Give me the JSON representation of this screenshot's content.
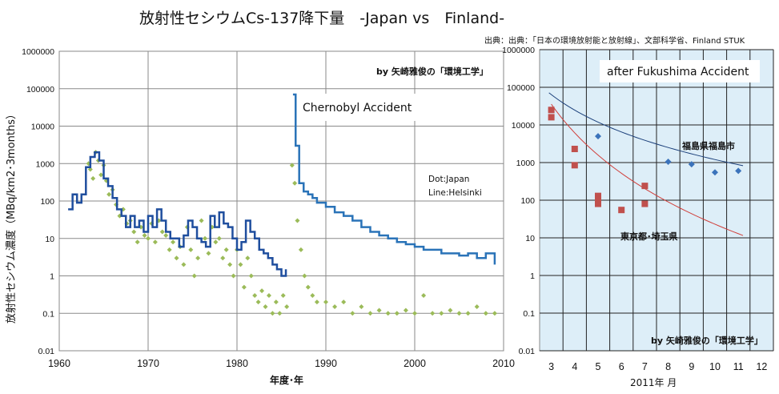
{
  "title": "放射性セシウムCs-137降下量　-Japan vs　Finland-",
  "source": "出典：出典：「日本の環境放射能と放射線」、文部科学省、Finland STUK",
  "chart_data": [
    {
      "type": "scatter",
      "ylabel": "放射性セシウム濃度（MBq/km2･3months）",
      "xlabel": "年度･年",
      "y_scale": "log",
      "ylim": [
        0.01,
        1000000
      ],
      "xlim": [
        1960,
        2010
      ],
      "x_ticks": [
        "1960",
        "1970",
        "1980",
        "1990",
        "2000",
        "2010"
      ],
      "y_ticks": [
        "0.01",
        "0.1",
        "1",
        "10",
        "100",
        "1000",
        "10000",
        "100000",
        "1000000"
      ],
      "grid": true,
      "credit": "by  矢崎雅俊の「環境工学」",
      "legend_note": [
        "Dot:Japan",
        "Line:Helsinki"
      ],
      "annotation": "Chernobyl Accident",
      "colors": {
        "japan_dots": "#9bbb59",
        "helsinki_line": "#1f4e9e",
        "helsinki_line_late": "#2a73b8"
      },
      "series": [
        {
          "name": "Japan",
          "style": "dots",
          "points": [
            [
              1963.3,
              1000
            ],
            [
              1963.5,
              700
            ],
            [
              1963.8,
              400
            ],
            [
              1964.1,
              2000
            ],
            [
              1964.4,
              1200
            ],
            [
              1964.7,
              500
            ],
            [
              1965.0,
              900
            ],
            [
              1965.3,
              350
            ],
            [
              1965.6,
              150
            ],
            [
              1966.0,
              200
            ],
            [
              1966.4,
              80
            ],
            [
              1966.8,
              40
            ],
            [
              1967.2,
              60
            ],
            [
              1967.6,
              25
            ],
            [
              1968.0,
              30
            ],
            [
              1968.4,
              15
            ],
            [
              1968.8,
              8
            ],
            [
              1969.2,
              20
            ],
            [
              1969.6,
              12
            ],
            [
              1970.0,
              10
            ],
            [
              1970.4,
              25
            ],
            [
              1970.8,
              8
            ],
            [
              1971.2,
              30
            ],
            [
              1971.6,
              15
            ],
            [
              1972.0,
              12
            ],
            [
              1972.4,
              5
            ],
            [
              1972.8,
              8
            ],
            [
              1973.2,
              3
            ],
            [
              1973.6,
              6
            ],
            [
              1974.0,
              2
            ],
            [
              1974.4,
              20
            ],
            [
              1974.8,
              5
            ],
            [
              1975.2,
              1
            ],
            [
              1975.6,
              3
            ],
            [
              1976.0,
              30
            ],
            [
              1976.4,
              10
            ],
            [
              1976.8,
              4
            ],
            [
              1977.2,
              20
            ],
            [
              1977.6,
              8
            ],
            [
              1978.0,
              10
            ],
            [
              1978.4,
              3
            ],
            [
              1978.8,
              5
            ],
            [
              1979.2,
              2
            ],
            [
              1979.6,
              1
            ],
            [
              1980.0,
              5
            ],
            [
              1980.4,
              2
            ],
            [
              1980.8,
              0.5
            ],
            [
              1981.2,
              3
            ],
            [
              1981.6,
              1
            ],
            [
              1982.0,
              0.3
            ],
            [
              1982.4,
              0.2
            ],
            [
              1982.8,
              0.4
            ],
            [
              1983.2,
              0.15
            ],
            [
              1983.6,
              0.3
            ],
            [
              1984.0,
              0.1
            ],
            [
              1984.4,
              0.2
            ],
            [
              1984.8,
              0.1
            ],
            [
              1985.2,
              0.3
            ],
            [
              1985.6,
              0.15
            ],
            [
              1986.2,
              900
            ],
            [
              1986.5,
              300
            ],
            [
              1986.8,
              30
            ],
            [
              1987.2,
              5
            ],
            [
              1987.6,
              1
            ],
            [
              1988.0,
              0.5
            ],
            [
              1988.5,
              0.3
            ],
            [
              1989.0,
              0.2
            ],
            [
              1990.0,
              0.2
            ],
            [
              1991.0,
              0.15
            ],
            [
              1992.0,
              0.2
            ],
            [
              1993.0,
              0.1
            ],
            [
              1994.0,
              0.15
            ],
            [
              1995.0,
              0.1
            ],
            [
              1996.0,
              0.12
            ],
            [
              1997.0,
              0.1
            ],
            [
              1998.0,
              0.1
            ],
            [
              1999.0,
              0.12
            ],
            [
              2000.0,
              0.1
            ],
            [
              2001.0,
              0.3
            ],
            [
              2002.0,
              0.1
            ],
            [
              2003.0,
              0.1
            ],
            [
              2004.0,
              0.12
            ],
            [
              2005.0,
              0.1
            ],
            [
              2006.0,
              0.1
            ],
            [
              2007.0,
              0.15
            ],
            [
              2008.0,
              0.1
            ],
            [
              2009.0,
              0.1
            ]
          ]
        },
        {
          "name": "Helsinki",
          "style": "step-line",
          "points": [
            [
              1961,
              60
            ],
            [
              1961.5,
              150
            ],
            [
              1962,
              90
            ],
            [
              1962.5,
              150
            ],
            [
              1963,
              800
            ],
            [
              1963.5,
              1500
            ],
            [
              1964,
              2000
            ],
            [
              1964.5,
              1200
            ],
            [
              1965,
              400
            ],
            [
              1965.5,
              250
            ],
            [
              1966,
              120
            ],
            [
              1966.5,
              60
            ],
            [
              1967,
              40
            ],
            [
              1967.5,
              20
            ],
            [
              1968,
              40
            ],
            [
              1968.5,
              20
            ],
            [
              1969,
              30
            ],
            [
              1969.5,
              15
            ],
            [
              1970,
              40
            ],
            [
              1970.5,
              20
            ],
            [
              1971,
              60
            ],
            [
              1971.5,
              30
            ],
            [
              1972,
              15
            ],
            [
              1972.5,
              10
            ],
            [
              1973,
              10
            ],
            [
              1973.5,
              6
            ],
            [
              1974,
              12
            ],
            [
              1974.5,
              30
            ],
            [
              1975,
              20
            ],
            [
              1975.5,
              10
            ],
            [
              1976,
              8
            ],
            [
              1976.5,
              6
            ],
            [
              1977,
              40
            ],
            [
              1977.5,
              20
            ],
            [
              1978,
              50
            ],
            [
              1978.5,
              25
            ],
            [
              1979,
              20
            ],
            [
              1979.5,
              10
            ],
            [
              1980,
              5
            ],
            [
              1980.5,
              8
            ],
            [
              1981,
              30
            ],
            [
              1981.5,
              15
            ],
            [
              1982,
              10
            ],
            [
              1982.5,
              5
            ],
            [
              1983,
              4
            ],
            [
              1983.5,
              3
            ],
            [
              1984,
              2
            ],
            [
              1984.5,
              1.5
            ],
            [
              1985,
              1
            ],
            [
              1985.5,
              1.5
            ],
            [
              1986.3,
              70000
            ],
            [
              1986.6,
              3000
            ],
            [
              1987,
              300
            ],
            [
              1987.5,
              180
            ],
            [
              1988,
              150
            ],
            [
              1988.5,
              120
            ],
            [
              1989,
              90
            ],
            [
              1990,
              70
            ],
            [
              1991,
              50
            ],
            [
              1992,
              40
            ],
            [
              1993,
              30
            ],
            [
              1994,
              20
            ],
            [
              1995,
              15
            ],
            [
              1996,
              12
            ],
            [
              1997,
              10
            ],
            [
              1998,
              8
            ],
            [
              1999,
              7
            ],
            [
              2000,
              6
            ],
            [
              2001,
              5
            ],
            [
              2002,
              5
            ],
            [
              2003,
              4
            ],
            [
              2004,
              4
            ],
            [
              2005,
              3.5
            ],
            [
              2006,
              4
            ],
            [
              2007,
              3
            ],
            [
              2008,
              4
            ],
            [
              2009,
              2
            ]
          ]
        }
      ]
    },
    {
      "type": "scatter",
      "title": "after Fukushima Accident",
      "xlabel": "2011年 月",
      "y_scale": "log",
      "ylim": [
        0.01,
        1000000
      ],
      "xlim": [
        2.5,
        12.5
      ],
      "x_ticks": [
        "3",
        "4",
        "5",
        "6",
        "7",
        "8",
        "9",
        "10",
        "11",
        "12"
      ],
      "y_ticks": [
        "0.01",
        "0.1",
        "1",
        "10",
        "100",
        "1000",
        "10000",
        "100000",
        "1000000"
      ],
      "grid": true,
      "credit": "by  矢崎雅俊の「環境工学」",
      "colors": {
        "fukushima": "#3b73bb",
        "tokyo": "#c0504d"
      },
      "series": [
        {
          "name": "福島県福島市",
          "points": [
            [
              5,
              5000
            ],
            [
              8,
              1050
            ],
            [
              9,
              900
            ],
            [
              10,
              550
            ],
            [
              11,
              600
            ]
          ]
        },
        {
          "name": "東京都･埼玉県",
          "points": [
            [
              3,
              25000
            ],
            [
              3,
              16000
            ],
            [
              4,
              2300
            ],
            [
              4,
              850
            ],
            [
              5,
              130
            ],
            [
              5,
              100
            ],
            [
              5,
              80
            ],
            [
              6,
              55
            ],
            [
              7,
              240
            ],
            [
              7,
              80
            ]
          ]
        }
      ]
    }
  ]
}
